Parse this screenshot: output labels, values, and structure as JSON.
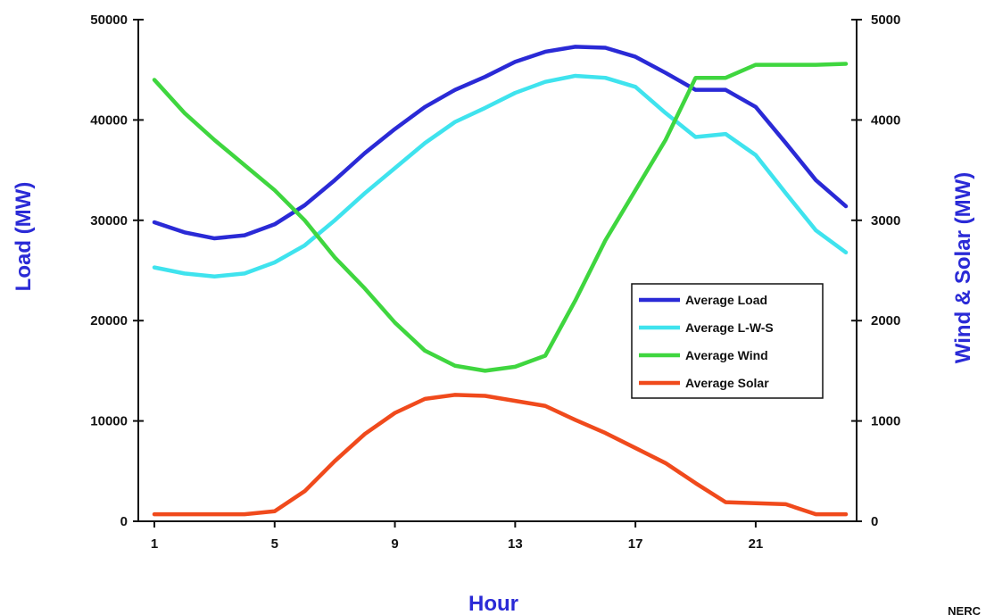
{
  "chart_data": {
    "type": "line",
    "title": "",
    "xlabel": "Hour",
    "ylabel_left": "Load (MW)",
    "ylabel_right": "Wind & Solar (MW)",
    "x": [
      1,
      2,
      3,
      4,
      5,
      6,
      7,
      8,
      9,
      10,
      11,
      12,
      13,
      14,
      15,
      16,
      17,
      18,
      19,
      20,
      21,
      22,
      23,
      24
    ],
    "x_tick_labels": [
      "1",
      "5",
      "9",
      "13",
      "17",
      "21"
    ],
    "y_left_tick_labels": [
      "0",
      "10000",
      "20000",
      "30000",
      "40000",
      "50000"
    ],
    "y_right_tick_labels": [
      "0",
      "1000",
      "2000",
      "3000",
      "4000",
      "5000"
    ],
    "ylim_left": [
      0,
      50000
    ],
    "ylim_right": [
      0,
      5000
    ],
    "xlim": [
      1,
      24
    ],
    "legend_position": "center-right",
    "grid": false,
    "series": [
      {
        "name": "Average Load",
        "axis": "left",
        "color": "#2a2ad6",
        "values": [
          29800,
          28800,
          28200,
          28500,
          29600,
          31500,
          34000,
          36700,
          39100,
          41300,
          43000,
          44300,
          45800,
          46800,
          47300,
          47200,
          46300,
          44700,
          43000,
          43000,
          41300,
          37700,
          34000,
          31400
        ]
      },
      {
        "name": "Average L-W-S",
        "axis": "left",
        "color": "#3fe3ee",
        "values": [
          25300,
          24700,
          24400,
          24700,
          25800,
          27500,
          30000,
          32700,
          35200,
          37700,
          39800,
          41200,
          42700,
          43800,
          44400,
          44200,
          43300,
          40700,
          38300,
          38600,
          36500,
          32700,
          29000,
          26800
        ]
      },
      {
        "name": "Average Wind",
        "axis": "right",
        "color": "#3fd63f",
        "values": [
          4400,
          4070,
          3800,
          3550,
          3300,
          3000,
          2630,
          2320,
          1980,
          1700,
          1550,
          1500,
          1540,
          1650,
          2200,
          2800,
          3300,
          3800,
          4420,
          4420,
          4550,
          4550,
          4550,
          4560
        ]
      },
      {
        "name": "Average Solar",
        "axis": "right",
        "color": "#f04a1c",
        "values": [
          70,
          70,
          70,
          70,
          100,
          300,
          600,
          870,
          1080,
          1220,
          1260,
          1250,
          1200,
          1150,
          1010,
          880,
          730,
          580,
          380,
          190,
          180,
          170,
          70,
          70
        ]
      }
    ]
  },
  "footer": {
    "corner_mark": "NERC"
  }
}
